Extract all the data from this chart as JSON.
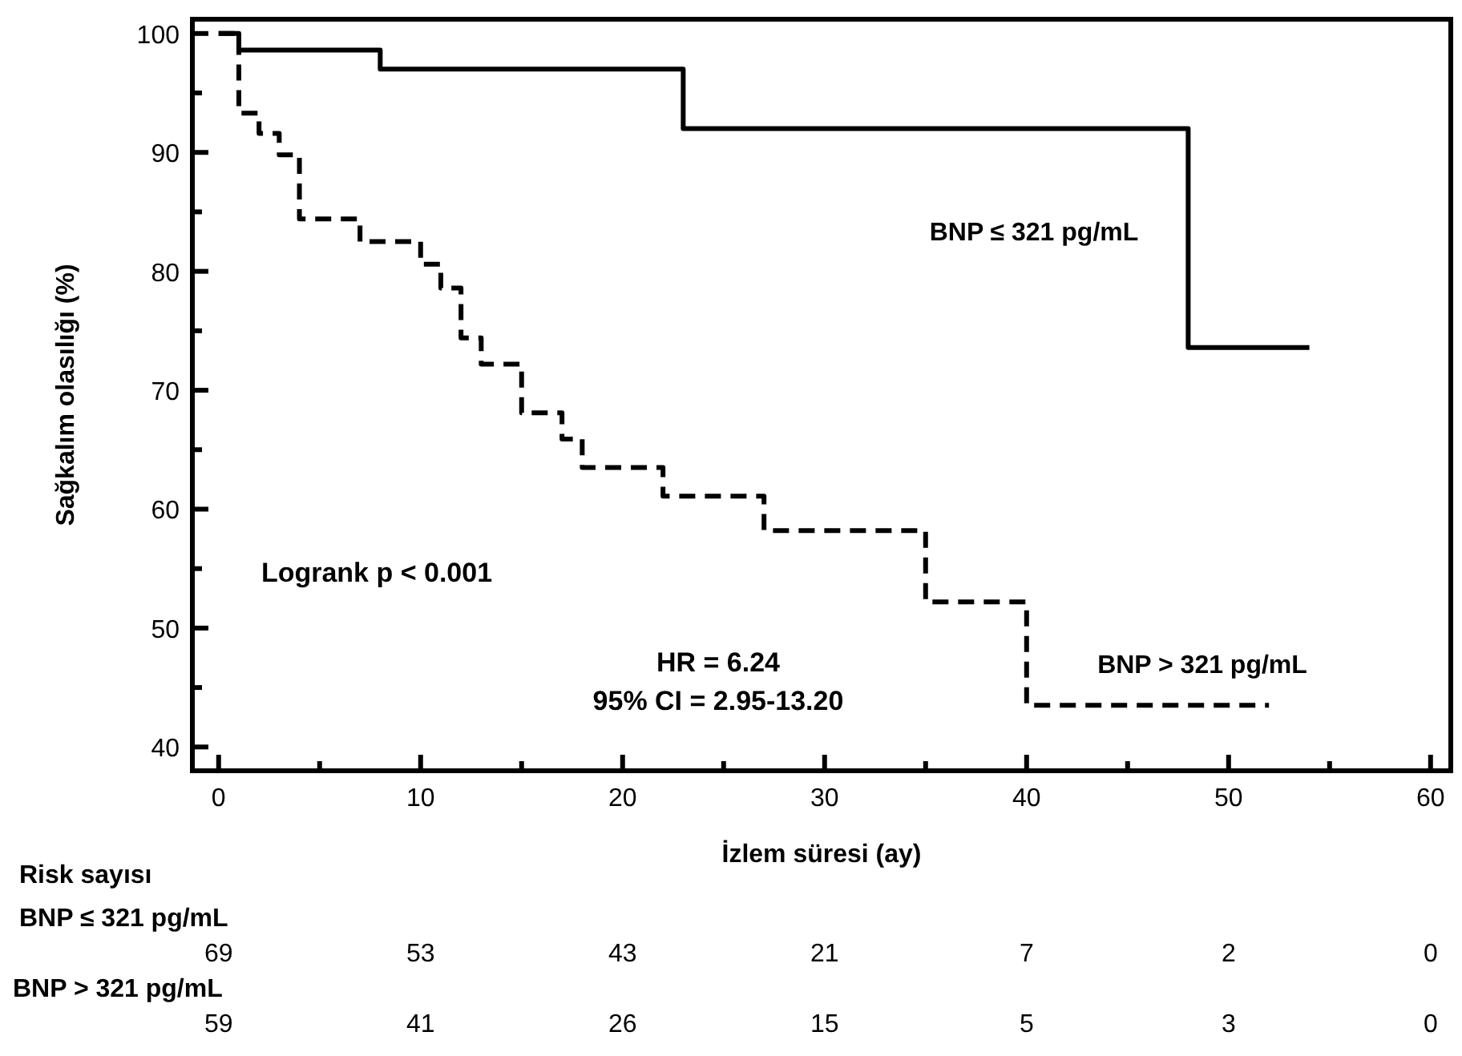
{
  "chart_data": {
    "type": "step",
    "xlabel": "İzlem süresi (ay)",
    "ylabel": "Sağkalım olasılığı (%)",
    "xlim": [
      -1.3,
      61
    ],
    "ylim": [
      38,
      101.2
    ],
    "xticks": [
      0,
      {
        "value": 5,
        "label": null
      },
      10,
      {
        "value": 15,
        "label": null
      },
      20,
      {
        "value": 25,
        "label": null
      },
      30,
      {
        "value": 35,
        "label": null
      },
      40,
      {
        "value": 45,
        "label": null
      },
      50,
      {
        "value": 55,
        "label": null
      },
      60
    ],
    "yticks": [
      40,
      {
        "value": 45,
        "label": null
      },
      50,
      {
        "value": 55,
        "label": null
      },
      60,
      {
        "value": 65,
        "label": null
      },
      70,
      {
        "value": 75,
        "label": null
      },
      80,
      {
        "value": 85,
        "label": null
      },
      90,
      {
        "value": 95,
        "label": null
      },
      100
    ],
    "grid": false,
    "marker": "none",
    "series": [
      {
        "name": "BNP ≤ 321 pg/mL",
        "color": "#000000",
        "line_style": "solid",
        "x": [
          0,
          1,
          8,
          23,
          48,
          54
        ],
        "values": [
          100,
          98.6,
          97,
          92,
          73.6,
          73.6
        ]
      },
      {
        "name": "BNP > 321 pg/mL",
        "color": "#000000",
        "line_style": "dashed",
        "x": [
          0,
          1,
          2,
          3,
          4,
          7,
          10,
          11,
          12,
          13,
          15,
          17,
          18,
          22,
          27,
          35,
          40,
          52
        ],
        "values": [
          100,
          93.3,
          91.6,
          89.8,
          84.4,
          82.5,
          80.6,
          78.6,
          74.4,
          72.2,
          68.1,
          65.9,
          63.5,
          61.1,
          58.2,
          52.2,
          43.5,
          43.5
        ]
      }
    ],
    "annotations": [
      "Logrank p < 0.001",
      "HR = 6.24",
      "95% CI = 2.95-13.20",
      "Risk sayısı",
      "BNP ≤ 321 pg/mL",
      "69",
      "53",
      "43",
      "21",
      "7",
      "2",
      "0",
      "BNP > 321 pg/mL",
      "59",
      "41",
      "26",
      "15",
      "5",
      "3",
      "0"
    ]
  }
}
